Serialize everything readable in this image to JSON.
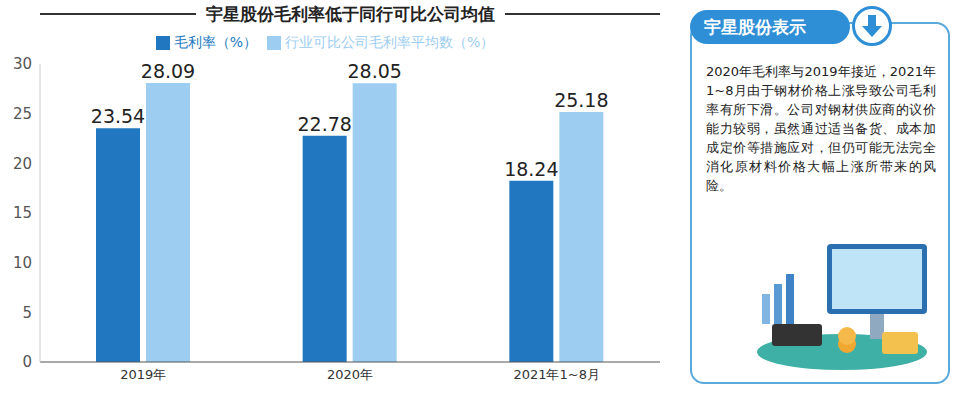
{
  "chart_data": {
    "type": "bar",
    "title": "宇星股份毛利率低于同行可比公司均值",
    "categories": [
      "2019年",
      "2020年",
      "2021年1~8月"
    ],
    "series": [
      {
        "name": "毛利率（%）",
        "color": "#2178c0",
        "values": [
          23.54,
          22.78,
          18.24
        ]
      },
      {
        "name": "行业可比公司毛利率平均数（%）",
        "color": "#9dcdf0",
        "values": [
          28.09,
          28.05,
          25.18
        ]
      }
    ],
    "ylim": [
      0,
      30
    ],
    "yticks": [
      0,
      5,
      10,
      15,
      20,
      25,
      30
    ],
    "grid": false,
    "legend": "top",
    "data_labels": true,
    "annotations": [
      {
        "title": "宇星股份表示",
        "text": "2020年毛利率与2019年接近，2021年1~8月由于钢材价格上涨导致公司毛利率有所下滑。公司对钢材供应商的议价能力较弱，虽然通过适当备货、成本加成定价等措施应对，但仍可能无法完全消化原材料价格大幅上涨所带来的风险。"
      }
    ]
  }
}
